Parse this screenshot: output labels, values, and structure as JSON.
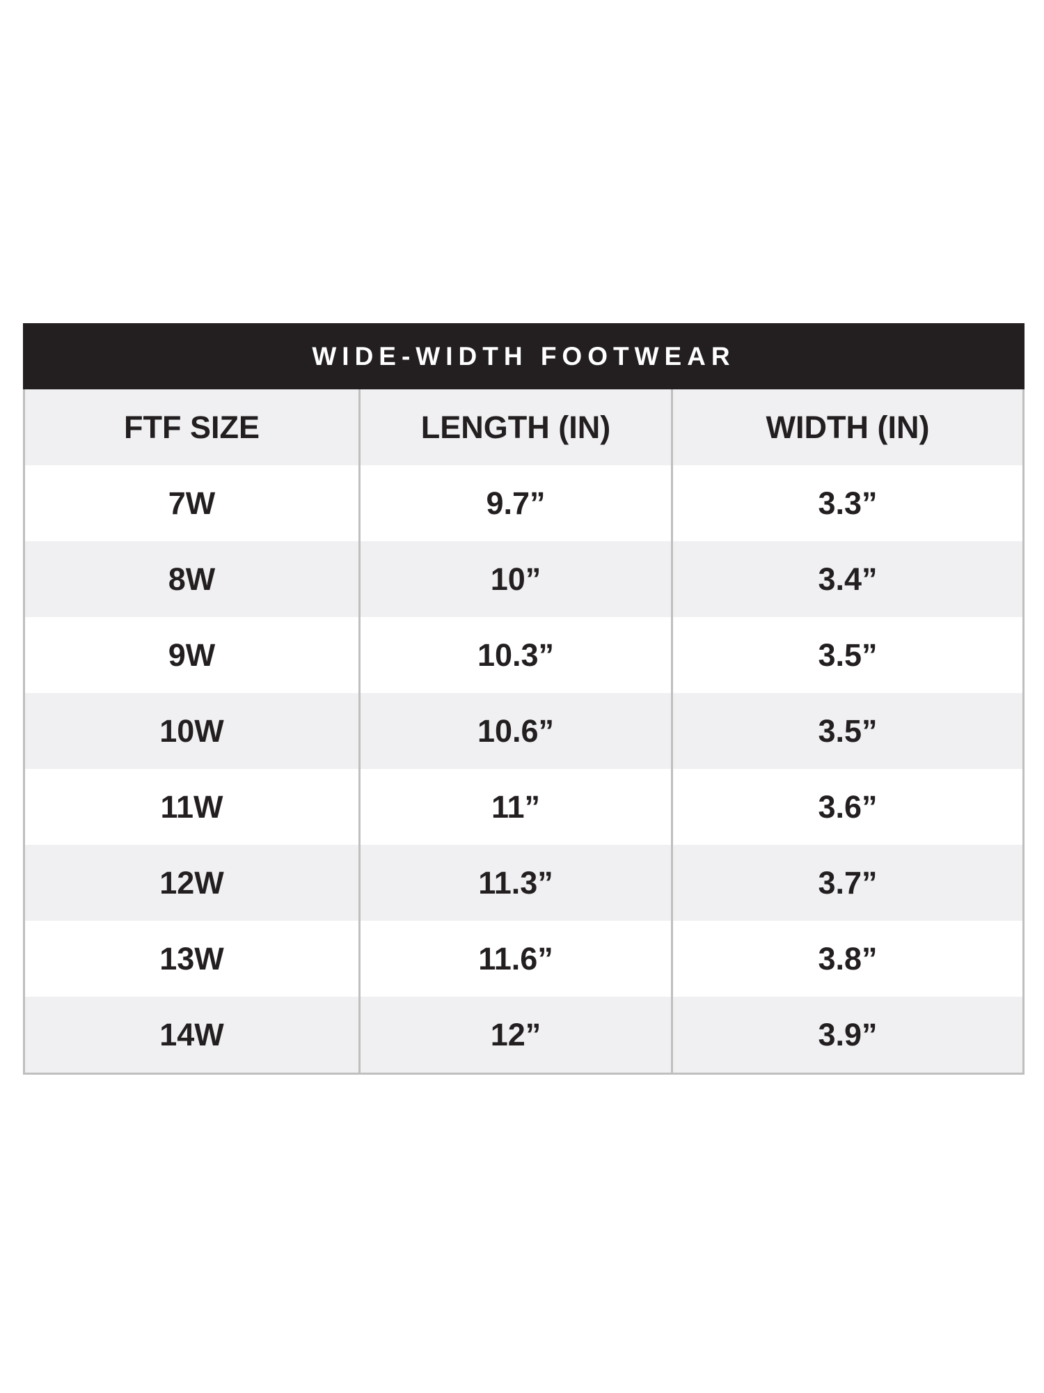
{
  "title": "WIDE-WIDTH FOOTWEAR",
  "headers": [
    "FTF SIZE",
    "LENGTH (IN)",
    "WIDTH (IN)"
  ],
  "rows": [
    [
      "7W",
      "9.7”",
      "3.3”"
    ],
    [
      "8W",
      "10”",
      "3.4”"
    ],
    [
      "9W",
      "10.3”",
      "3.5”"
    ],
    [
      "10W",
      "10.6”",
      "3.5”"
    ],
    [
      "11W",
      "11”",
      "3.6”"
    ],
    [
      "12W",
      "11.3”",
      "3.7”"
    ],
    [
      "13W",
      "11.6”",
      "3.8”"
    ],
    [
      "14W",
      "12”",
      "3.9”"
    ]
  ],
  "colors": {
    "title_bg": "#231f20",
    "shade_row": "#f0f0f2",
    "border": "#bfbfbf"
  }
}
